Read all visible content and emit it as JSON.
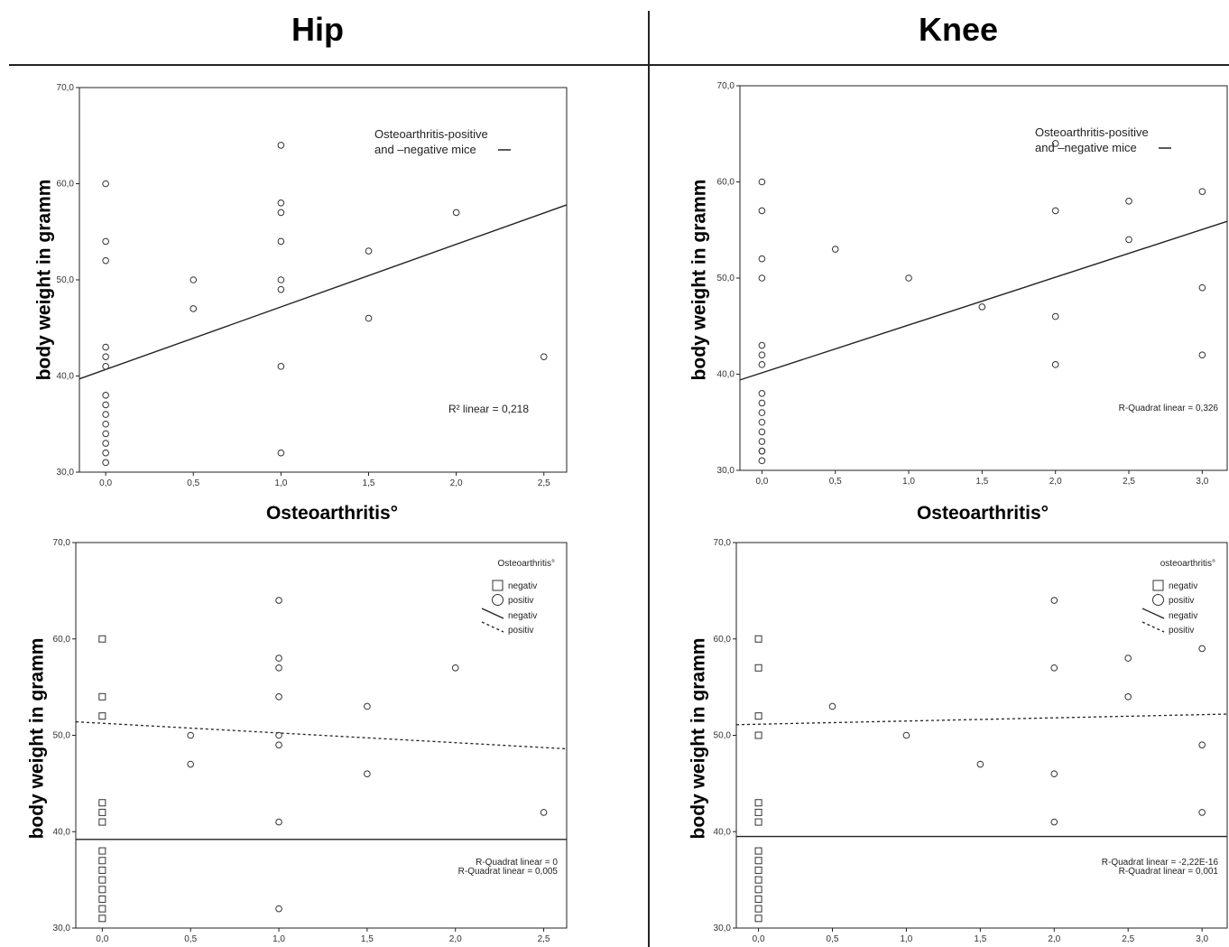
{
  "columns": {
    "left": "Hip",
    "right": "Knee"
  },
  "chart_data": [
    {
      "id": "hip-top",
      "type": "scatter",
      "ylabel": "body weight in gramm",
      "xlabel": "Osteoarthritis°",
      "xlim": [
        -0.15,
        2.63
      ],
      "ylim": [
        30,
        70
      ],
      "xticks": [
        "0,0",
        "0,5",
        "1,0",
        "1,5",
        "2,0",
        "2,5"
      ],
      "yticks": [
        "30,0",
        "40,0",
        "50,0",
        "60,0",
        "70,0"
      ],
      "legend": {
        "line1": "Osteoarthritis-positive",
        "line2": "and –negative mice"
      },
      "r2_labels": [
        "R² linear = 0,218"
      ],
      "series": [
        {
          "marker": "circle",
          "points": [
            [
              0,
              60
            ],
            [
              0,
              54
            ],
            [
              0,
              52
            ],
            [
              0,
              43
            ],
            [
              0,
              42
            ],
            [
              0,
              41
            ],
            [
              0,
              38
            ],
            [
              0,
              37
            ],
            [
              0,
              36
            ],
            [
              0,
              35
            ],
            [
              0,
              34
            ],
            [
              0,
              33
            ],
            [
              0,
              32
            ],
            [
              0,
              31
            ],
            [
              0.5,
              50
            ],
            [
              0.5,
              47
            ],
            [
              1,
              64
            ],
            [
              1,
              58
            ],
            [
              1,
              57
            ],
            [
              1,
              54
            ],
            [
              1,
              50
            ],
            [
              1,
              49
            ],
            [
              1,
              41
            ],
            [
              1,
              32
            ],
            [
              1.5,
              53
            ],
            [
              1.5,
              46
            ],
            [
              2,
              57
            ],
            [
              2.5,
              42
            ]
          ]
        }
      ],
      "fit_lines": [
        {
          "style": "solid",
          "y_start": 39.7,
          "y_end": 57.8
        }
      ]
    },
    {
      "id": "knee-top",
      "type": "scatter",
      "ylabel": "body weight in gramm",
      "xlabel": "Osteoarthritis°",
      "xlim": [
        -0.15,
        3.17
      ],
      "ylim": [
        30,
        70
      ],
      "xticks": [
        "0,0",
        "0,5",
        "1,0",
        "1,5",
        "2,0",
        "2,5",
        "3,0"
      ],
      "yticks": [
        "30,0",
        "40,0",
        "50,0",
        "60,0",
        "70,0"
      ],
      "legend": {
        "line1": "Osteoarthritis-positive",
        "line2": "and –negative mice"
      },
      "r2_labels": [
        "R-Quadrat linear = 0,326"
      ],
      "series": [
        {
          "marker": "circle",
          "points": [
            [
              0,
              60
            ],
            [
              0,
              57
            ],
            [
              0,
              52
            ],
            [
              0,
              50
            ],
            [
              0,
              43
            ],
            [
              0,
              42
            ],
            [
              0,
              41
            ],
            [
              0,
              38
            ],
            [
              0,
              37
            ],
            [
              0,
              36
            ],
            [
              0,
              35
            ],
            [
              0,
              34
            ],
            [
              0,
              33
            ],
            [
              0,
              32
            ],
            [
              0,
              32
            ],
            [
              0,
              31
            ],
            [
              0.5,
              53
            ],
            [
              1,
              50
            ],
            [
              1.5,
              47
            ],
            [
              2,
              64
            ],
            [
              2,
              57
            ],
            [
              2,
              46
            ],
            [
              2,
              41
            ],
            [
              2.5,
              58
            ],
            [
              2.5,
              54
            ],
            [
              3,
              59
            ],
            [
              3,
              49
            ],
            [
              3,
              42
            ]
          ]
        }
      ],
      "fit_lines": [
        {
          "style": "solid",
          "y_start": 39.4,
          "y_end": 55.9
        }
      ]
    },
    {
      "id": "hip-bottom",
      "type": "scatter",
      "ylabel": "body weight in gramm",
      "xlabel": "",
      "xlim": [
        -0.15,
        2.63
      ],
      "ylim": [
        30,
        70
      ],
      "xticks": [
        "0,0",
        "0,5",
        "1,0",
        "1,5",
        "2,0",
        "2,5"
      ],
      "yticks": [
        "30,0",
        "40,0",
        "50,0",
        "60,0",
        "70,0"
      ],
      "legend_title": "Osteoarthritis°",
      "legend_items": [
        "negativ",
        "positiv",
        "negativ",
        "positiv"
      ],
      "r2_labels": [
        "R-Quadrat linear = 0",
        "R-Quadrat linear = 0,005"
      ],
      "series": [
        {
          "marker": "square",
          "points": [
            [
              0,
              60
            ],
            [
              0,
              54
            ],
            [
              0,
              52
            ],
            [
              0,
              43
            ],
            [
              0,
              42
            ],
            [
              0,
              41
            ],
            [
              0,
              38
            ],
            [
              0,
              37
            ],
            [
              0,
              36
            ],
            [
              0,
              35
            ],
            [
              0,
              34
            ],
            [
              0,
              33
            ],
            [
              0,
              32
            ],
            [
              0,
              31
            ]
          ]
        },
        {
          "marker": "circle",
          "points": [
            [
              0.5,
              50
            ],
            [
              0.5,
              47
            ],
            [
              1,
              64
            ],
            [
              1,
              58
            ],
            [
              1,
              57
            ],
            [
              1,
              54
            ],
            [
              1,
              50
            ],
            [
              1,
              49
            ],
            [
              1,
              41
            ],
            [
              1,
              32
            ],
            [
              1.5,
              53
            ],
            [
              1.5,
              46
            ],
            [
              2,
              57
            ],
            [
              2.5,
              42
            ]
          ]
        }
      ],
      "fit_lines": [
        {
          "style": "solid",
          "y_start": 39.2,
          "y_end": 39.2
        },
        {
          "style": "dotted",
          "y_start": 51.4,
          "y_end": 48.6
        }
      ]
    },
    {
      "id": "knee-bottom",
      "type": "scatter",
      "ylabel": "body weight in gramm",
      "xlabel": "",
      "xlim": [
        -0.15,
        3.17
      ],
      "ylim": [
        30,
        70
      ],
      "xticks": [
        "0,0",
        "0,5",
        "1,0",
        "1,5",
        "2,0",
        "2,5",
        "3,0"
      ],
      "yticks": [
        "30,0",
        "40,0",
        "50,0",
        "60,0",
        "70,0"
      ],
      "legend_title": "osteoarthritis°",
      "legend_items": [
        "negativ",
        "positiv",
        "negativ",
        "positiv"
      ],
      "r2_labels": [
        "R-Quadrat linear = -2,22E-16",
        "R-Quadrat linear = 0,001"
      ],
      "series": [
        {
          "marker": "square",
          "points": [
            [
              0,
              60
            ],
            [
              0,
              57
            ],
            [
              0,
              52
            ],
            [
              0,
              50
            ],
            [
              0,
              43
            ],
            [
              0,
              42
            ],
            [
              0,
              41
            ],
            [
              0,
              38
            ],
            [
              0,
              37
            ],
            [
              0,
              36
            ],
            [
              0,
              35
            ],
            [
              0,
              34
            ],
            [
              0,
              33
            ],
            [
              0,
              32
            ],
            [
              0,
              31
            ]
          ]
        },
        {
          "marker": "circle",
          "points": [
            [
              0.5,
              53
            ],
            [
              1,
              50
            ],
            [
              1.5,
              47
            ],
            [
              2,
              64
            ],
            [
              2,
              57
            ],
            [
              2,
              46
            ],
            [
              2,
              41
            ],
            [
              2.5,
              58
            ],
            [
              2.5,
              54
            ],
            [
              3,
              59
            ],
            [
              3,
              49
            ],
            [
              3,
              42
            ]
          ]
        }
      ],
      "fit_lines": [
        {
          "style": "solid",
          "y_start": 39.5,
          "y_end": 39.5
        },
        {
          "style": "dotted",
          "y_start": 51.1,
          "y_end": 52.2
        }
      ]
    }
  ]
}
